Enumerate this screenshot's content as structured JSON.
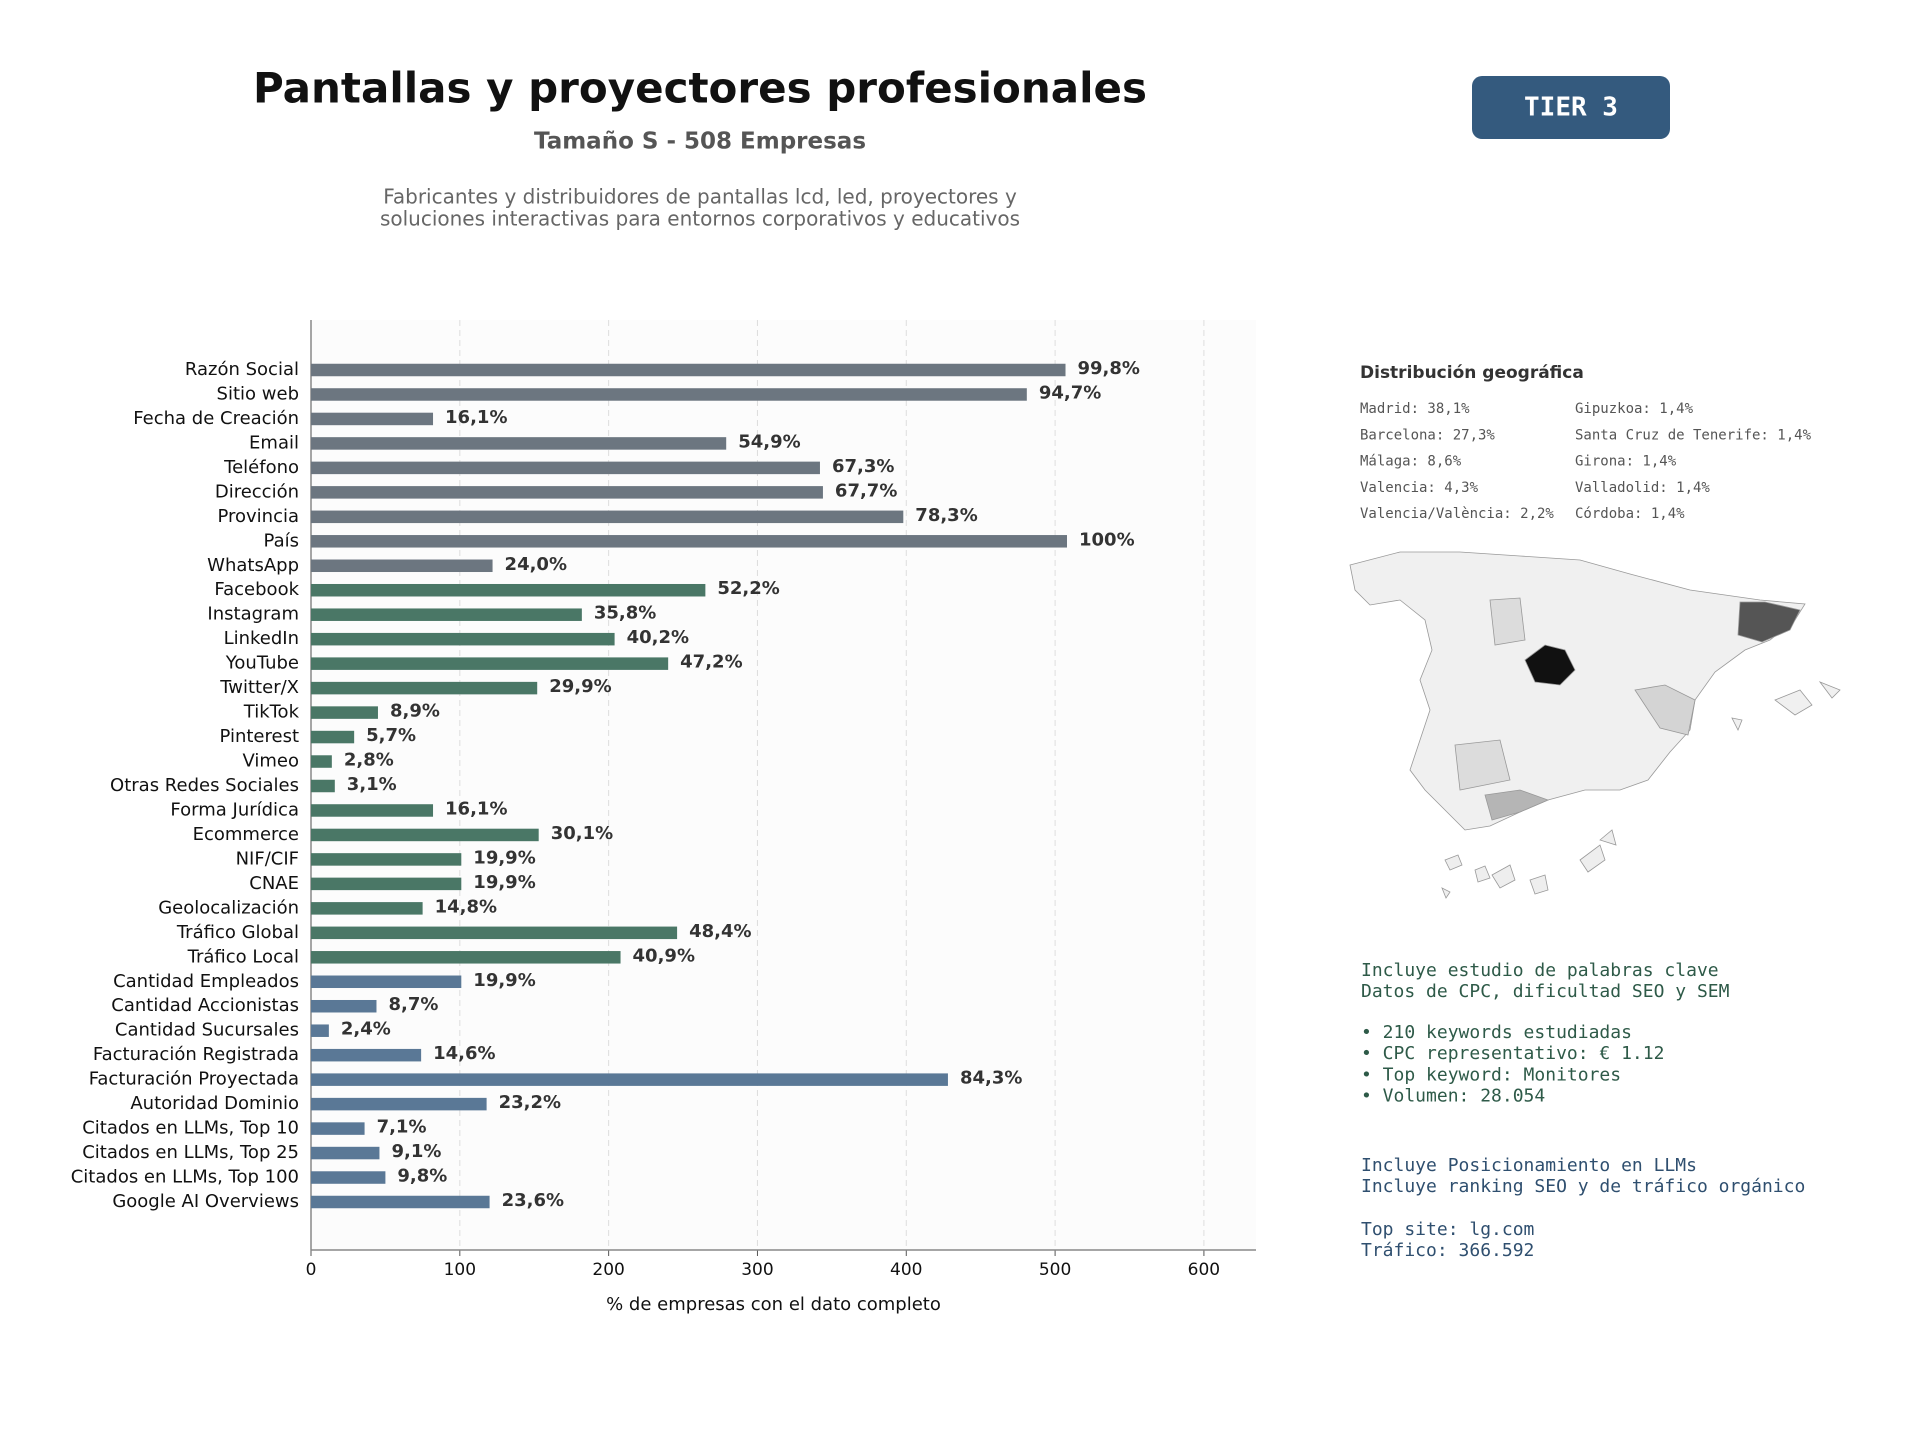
{
  "chart_data": {
    "type": "barh",
    "title": "Pantallas y proyectores profesionales",
    "subtitle": "Tamaño S - 508 Empresas",
    "description": [
      "Fabricantes y distribuidores de pantallas lcd, led, proyectores y",
      "soluciones interactivas para entornos corporativos y educativos"
    ],
    "badge": "TIER 3",
    "xlabel": "% de empresas con el dato completo",
    "categories": [
      "Razón Social",
      "Sitio web",
      "Fecha de Creación",
      "Email",
      "Teléfono",
      "Dirección",
      "Provincia",
      "País",
      "WhatsApp",
      "Facebook",
      "Instagram",
      "LinkedIn",
      "YouTube",
      "Twitter/X",
      "TikTok",
      "Pinterest",
      "Vimeo",
      "Otras Redes Sociales",
      "Forma Jurídica",
      "Ecommerce",
      "NIF/CIF",
      "CNAE",
      "Geolocalización",
      "Tráfico Global",
      "Tráfico Local",
      "Cantidad Empleados",
      "Cantidad Accionistas",
      "Cantidad Sucursales",
      "Facturación Registrada",
      "Facturación Proyectada",
      "Autoridad Dominio",
      "Citados en LLMs, Top 10",
      "Citados en LLMs, Top 25",
      "Citados en LLMs, Top 100",
      "Google AI Overviews"
    ],
    "values": [
      507,
      481,
      82,
      279,
      342,
      344,
      398,
      508,
      122,
      265,
      182,
      204,
      240,
      152,
      45,
      29,
      14,
      16,
      82,
      153,
      101,
      101,
      75,
      246,
      208,
      101,
      44,
      12,
      74,
      428,
      118,
      36,
      46,
      50,
      120
    ],
    "value_labels": [
      "99,8%",
      "94,7%",
      "16,1%",
      "54,9%",
      "67,3%",
      "67,7%",
      "78,3%",
      "100%",
      "24,0%",
      "52,2%",
      "35,8%",
      "40,2%",
      "47,2%",
      "29,9%",
      "8,9%",
      "5,7%",
      "2,8%",
      "3,1%",
      "16,1%",
      "30,1%",
      "19,9%",
      "19,9%",
      "14,8%",
      "48,4%",
      "40,9%",
      "19,9%",
      "8,7%",
      "2,4%",
      "14,6%",
      "84,3%",
      "23,2%",
      "7,1%",
      "9,1%",
      "9,8%",
      "23,6%"
    ],
    "colors": [
      "#6c7680",
      "#6c7680",
      "#6c7680",
      "#6c7680",
      "#6c7680",
      "#6c7680",
      "#6c7680",
      "#6c7680",
      "#6c7680",
      "#4a7766",
      "#4a7766",
      "#4a7766",
      "#4a7766",
      "#4a7766",
      "#4a7766",
      "#4a7766",
      "#4a7766",
      "#4a7766",
      "#4a7766",
      "#4a7766",
      "#4a7766",
      "#4a7766",
      "#4a7766",
      "#4a7766",
      "#4a7766",
      "#5a7896",
      "#5a7896",
      "#5a7896",
      "#5a7896",
      "#5a7896",
      "#5a7896",
      "#5a7896",
      "#5a7896",
      "#5a7896",
      "#5a7896"
    ],
    "xlim": [
      0,
      635
    ],
    "xticks": [
      0,
      100,
      200,
      300,
      400,
      500,
      600
    ],
    "grid": true,
    "geo": {
      "title": "Distribución geográfica",
      "items": [
        "Madrid: 38,1%",
        "Barcelona: 27,3%",
        "Málaga: 8,6%",
        "Valencia: 4,3%",
        "Valencia/València: 2,2%",
        "Gipuzkoa: 1,4%",
        "Santa Cruz de Tenerife: 1,4%",
        "Girona: 1,4%",
        "Valladolid: 1,4%",
        "Córdoba: 1,4%"
      ]
    },
    "seo": [
      [
        "Incluye estudio de palabras clave",
        "Datos de CPC, dificultad SEO y SEM"
      ],
      [
        "• 210 keywords estudiadas",
        "• CPC representativo: € 1.12",
        "• Top keyword: Monitores",
        "• Volumen: 28.054"
      ]
    ],
    "llm": [
      [
        "Incluye Posicionamiento en LLMs",
        "Incluye ranking SEO y de tráfico orgánico"
      ],
      [
        "Top site: lg.com",
        "Tráfico: 366.592"
      ]
    ]
  }
}
